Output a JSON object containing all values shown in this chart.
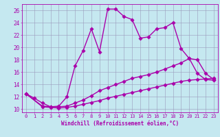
{
  "xlabel": "Windchill (Refroidissement éolien,°C)",
  "background_color": "#c5e8f0",
  "grid_color": "#9999bb",
  "line_color": "#aa00aa",
  "x_ticks": [
    0,
    1,
    2,
    3,
    4,
    5,
    6,
    7,
    8,
    9,
    10,
    11,
    12,
    13,
    14,
    15,
    16,
    17,
    18,
    19,
    20,
    21,
    22,
    23
  ],
  "ylim": [
    9.5,
    27.0
  ],
  "xlim": [
    -0.5,
    23.5
  ],
  "series": [
    {
      "x": [
        0,
        1,
        2,
        3,
        4,
        5,
        6,
        7,
        8,
        9,
        10,
        11,
        12,
        13,
        14,
        15,
        16,
        17,
        18,
        19,
        20,
        21,
        22,
        23
      ],
      "y": [
        12.5,
        11.8,
        11.0,
        10.4,
        10.5,
        12.0,
        17.0,
        19.5,
        23.0,
        19.3,
        26.2,
        26.2,
        25.0,
        24.5,
        21.5,
        21.7,
        23.0,
        23.2,
        24.0,
        19.8,
        18.2,
        15.8,
        14.8,
        14.7
      ]
    },
    {
      "x": [
        0,
        2,
        3,
        4,
        5,
        6,
        7,
        8,
        9,
        10,
        11,
        12,
        13,
        14,
        15,
        16,
        17,
        18,
        19,
        20,
        21,
        22,
        23
      ],
      "y": [
        12.5,
        10.5,
        10.4,
        10.4,
        10.5,
        11.0,
        11.5,
        12.2,
        13.0,
        13.5,
        14.0,
        14.5,
        15.0,
        15.3,
        15.6,
        16.0,
        16.5,
        17.0,
        17.5,
        18.2,
        18.0,
        15.8,
        14.8
      ]
    },
    {
      "x": [
        0,
        2,
        3,
        4,
        5,
        6,
        7,
        8,
        9,
        10,
        11,
        12,
        13,
        14,
        15,
        16,
        17,
        18,
        19,
        20,
        21,
        22,
        23
      ],
      "y": [
        12.5,
        10.4,
        10.3,
        10.2,
        10.3,
        10.5,
        10.8,
        11.1,
        11.4,
        11.8,
        12.1,
        12.4,
        12.7,
        13.0,
        13.3,
        13.6,
        13.9,
        14.2,
        14.5,
        14.7,
        14.8,
        14.9,
        15.0
      ]
    }
  ],
  "yticks": [
    10,
    12,
    14,
    16,
    18,
    20,
    22,
    24,
    26
  ],
  "tick_fontsize": 5.0,
  "xlabel_fontsize": 5.5,
  "linewidth": 1.0,
  "markersize": 2.8
}
